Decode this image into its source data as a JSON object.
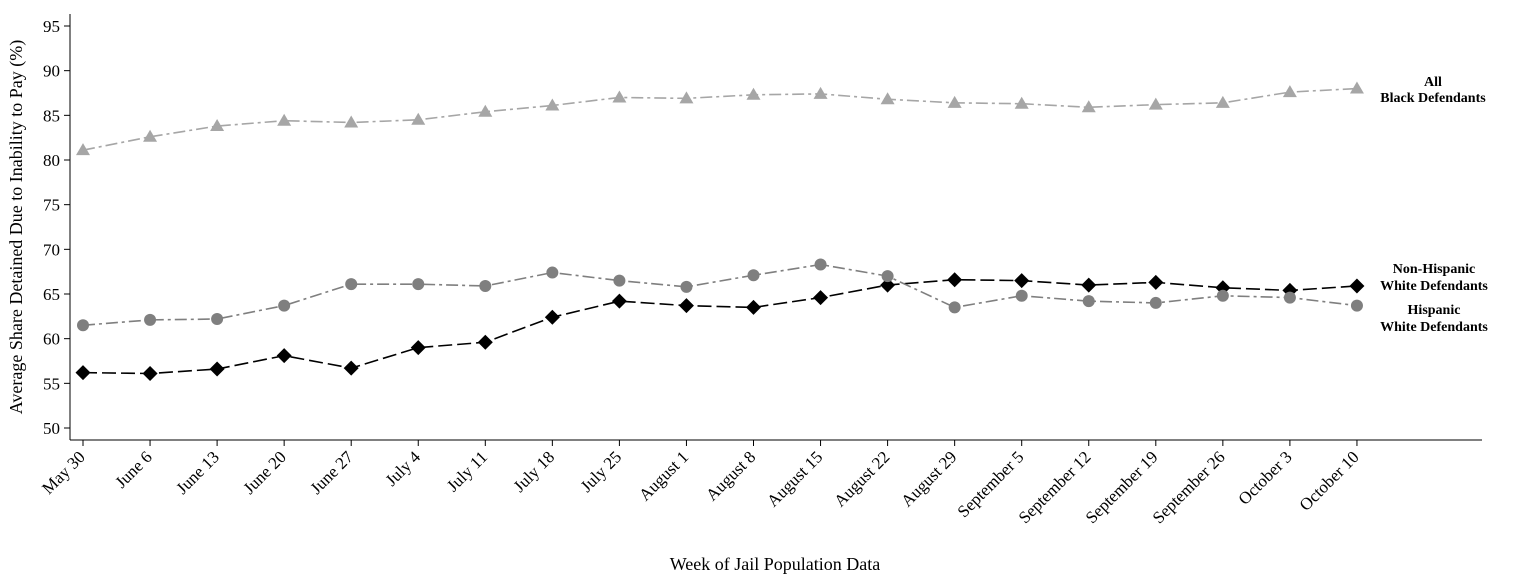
{
  "chart_data": {
    "type": "line",
    "xlabel": "Week of Jail Population Data",
    "ylabel": "Average Share Detained Due to Inability to Pay (%)",
    "ylim": [
      49,
      96
    ],
    "yticks": [
      50,
      55,
      60,
      65,
      70,
      75,
      80,
      85,
      90,
      95
    ],
    "grid": false,
    "legend": "none (series labeled at right end of lines)",
    "categories": [
      "May 30",
      "June 6",
      "June 13",
      "June 20",
      "June 27",
      "July 4",
      "July 11",
      "July 18",
      "July 25",
      "August 1",
      "August 8",
      "August 15",
      "August 22",
      "August 29",
      "September 5",
      "September 12",
      "September 19",
      "September 26",
      "October 3",
      "October 10"
    ],
    "series": [
      {
        "name": "All Black Defendants",
        "label_lines": [
          "All",
          "Black Defendants"
        ],
        "marker": "triangle",
        "color": "#a6a6a6",
        "dash": "12 4 3 4",
        "values": [
          81.1,
          82.6,
          83.8,
          84.4,
          84.2,
          84.5,
          85.4,
          86.1,
          87.0,
          86.9,
          87.3,
          87.4,
          86.8,
          86.4,
          86.3,
          85.9,
          86.2,
          86.4,
          87.6,
          88.0
        ]
      },
      {
        "name": "Non-Hispanic White Defendants",
        "label_lines": [
          "Non-Hispanic",
          "White Defendants"
        ],
        "marker": "diamond",
        "color": "#000000",
        "dash": "14 5",
        "values": [
          56.2,
          56.1,
          56.6,
          58.1,
          56.7,
          59.0,
          59.6,
          62.4,
          64.2,
          63.7,
          63.5,
          64.6,
          66.0,
          66.6,
          66.5,
          66.0,
          66.3,
          65.7,
          65.4,
          65.9
        ]
      },
      {
        "name": "Hispanic White Defendants",
        "label_lines": [
          "Hispanic",
          "White Defendants"
        ],
        "marker": "circle",
        "color": "#7f7f7f",
        "dash": "12 4 3 4",
        "values": [
          61.5,
          62.1,
          62.2,
          63.7,
          66.1,
          66.1,
          65.9,
          67.4,
          66.5,
          65.8,
          67.1,
          68.3,
          67.0,
          63.5,
          64.8,
          64.2,
          64.0,
          64.8,
          64.6,
          63.7
        ]
      }
    ]
  }
}
